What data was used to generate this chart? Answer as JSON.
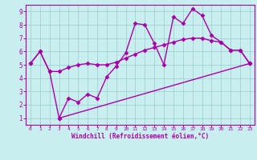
{
  "line1_x": [
    0,
    1,
    2,
    3,
    4,
    5,
    6,
    7,
    8,
    9,
    10,
    11,
    12,
    13,
    14,
    15,
    16,
    17,
    18,
    19,
    20,
    21,
    22,
    23
  ],
  "line1_y": [
    5.1,
    6.0,
    4.5,
    1.0,
    2.5,
    2.2,
    2.8,
    2.5,
    4.1,
    4.9,
    5.9,
    8.1,
    8.0,
    6.6,
    5.0,
    8.6,
    8.1,
    9.2,
    8.7,
    7.2,
    6.7,
    6.1,
    6.1,
    5.1
  ],
  "line2_x": [
    0,
    1,
    2,
    3,
    4,
    5,
    6,
    7,
    8,
    9,
    10,
    11,
    12,
    13,
    14,
    15,
    16,
    17,
    18,
    19,
    20,
    21,
    22,
    23
  ],
  "line2_y": [
    5.1,
    6.0,
    4.5,
    4.5,
    4.8,
    5.0,
    5.1,
    5.0,
    5.0,
    5.2,
    5.5,
    5.8,
    6.1,
    6.3,
    6.5,
    6.7,
    6.9,
    7.0,
    7.0,
    6.8,
    6.7,
    6.1,
    6.1,
    5.1
  ],
  "line3_x": [
    3,
    23
  ],
  "line3_y": [
    1.0,
    5.1
  ],
  "line_color": "#aa00aa",
  "bg_color": "#c8eef0",
  "grid_color": "#99cccc",
  "xlabel": "Windchill (Refroidissement éolien,°C)",
  "xlim": [
    -0.5,
    23.5
  ],
  "ylim": [
    0.5,
    9.5
  ],
  "xticks": [
    0,
    1,
    2,
    3,
    4,
    5,
    6,
    7,
    8,
    9,
    10,
    11,
    12,
    13,
    14,
    15,
    16,
    17,
    18,
    19,
    20,
    21,
    22,
    23
  ],
  "yticks": [
    1,
    2,
    3,
    4,
    5,
    6,
    7,
    8,
    9
  ],
  "marker": "D",
  "marker_size": 2.5,
  "line_width": 1.0
}
